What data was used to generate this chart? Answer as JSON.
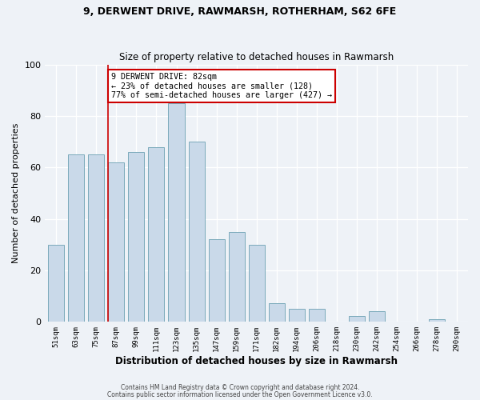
{
  "title1": "9, DERWENT DRIVE, RAWMARSH, ROTHERHAM, S62 6FE",
  "title2": "Size of property relative to detached houses in Rawmarsh",
  "xlabel": "Distribution of detached houses by size in Rawmarsh",
  "ylabel": "Number of detached properties",
  "footer1": "Contains HM Land Registry data © Crown copyright and database right 2024.",
  "footer2": "Contains public sector information licensed under the Open Government Licence v3.0.",
  "bar_labels": [
    "51sqm",
    "63sqm",
    "75sqm",
    "87sqm",
    "99sqm",
    "111sqm",
    "123sqm",
    "135sqm",
    "147sqm",
    "159sqm",
    "171sqm",
    "182sqm",
    "194sqm",
    "206sqm",
    "218sqm",
    "230sqm",
    "242sqm",
    "254sqm",
    "266sqm",
    "278sqm",
    "290sqm"
  ],
  "bar_heights": [
    30,
    65,
    65,
    62,
    66,
    68,
    85,
    70,
    32,
    35,
    30,
    7,
    5,
    5,
    0,
    2,
    4,
    0,
    0,
    1,
    0
  ],
  "bar_color": "#c9d9e9",
  "bar_edge_color": "#7aaabb",
  "ylim": [
    0,
    100
  ],
  "yticks": [
    0,
    20,
    40,
    60,
    80,
    100
  ],
  "annotation_title": "9 DERWENT DRIVE: 82sqm",
  "annotation_line1": "← 23% of detached houses are smaller (128)",
  "annotation_line2": "77% of semi-detached houses are larger (427) →",
  "annotation_box_color": "#ffffff",
  "annotation_box_edge": "#cc0000",
  "vline_color": "#cc0000",
  "background_color": "#eef2f7"
}
